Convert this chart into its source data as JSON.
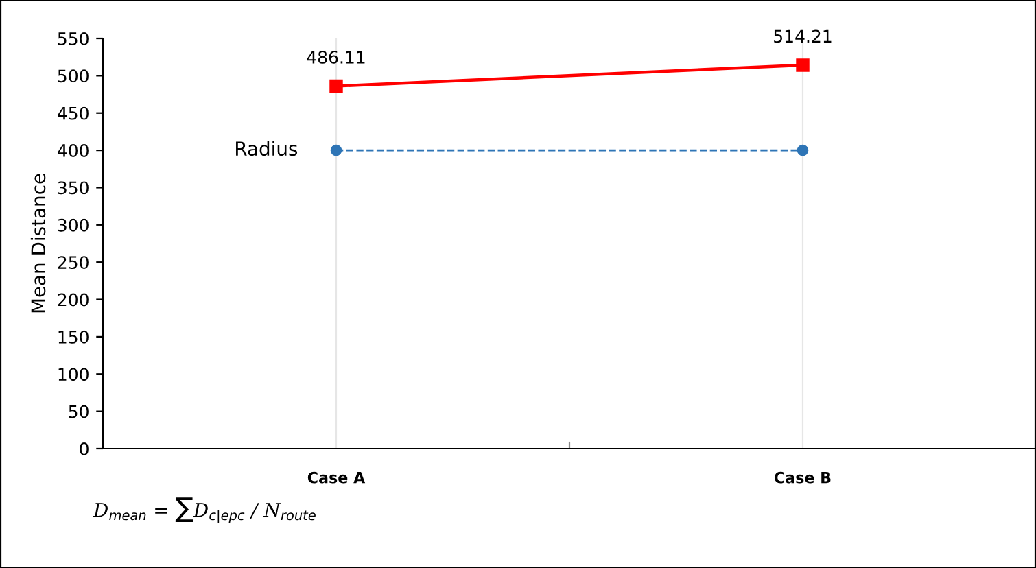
{
  "chart_data": {
    "type": "line",
    "ylabel": "Mean Distance",
    "categories": [
      "Case A",
      "Case B"
    ],
    "series": [
      {
        "color": "#ff0000",
        "values": [
          486.11,
          514.21
        ],
        "value_labels": [
          "486.11",
          "514.21"
        ],
        "marker": "square",
        "line_style": "solid"
      },
      {
        "name": "Radius",
        "color": "#2e75b6",
        "values": [
          400,
          400
        ],
        "marker": "circle",
        "line_style": "dashed"
      }
    ],
    "ylim": [
      0,
      550
    ],
    "yticks": [
      0,
      50,
      100,
      150,
      200,
      250,
      300,
      350,
      400,
      450,
      500,
      550
    ],
    "grid": "x",
    "annotations": [
      "D$_{mean}$ = ∑D$_{c|epc}$ / N$_{route}$"
    ]
  }
}
